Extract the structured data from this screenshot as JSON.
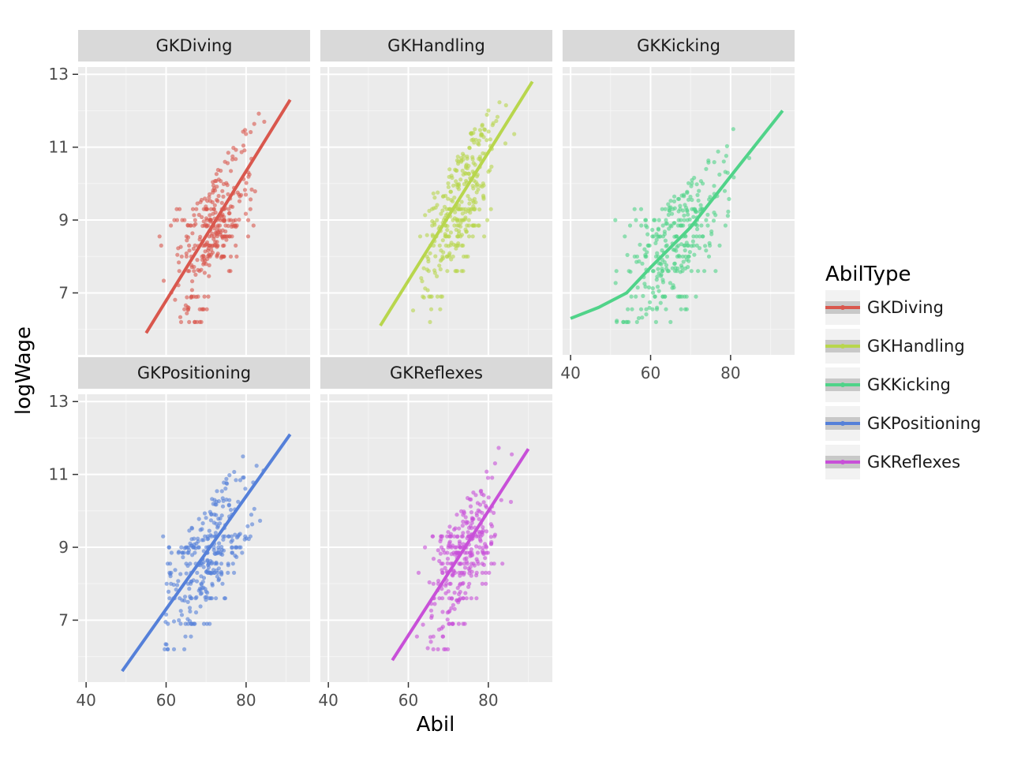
{
  "chart_data": {
    "type": "scatter",
    "layout": "facet_wrap",
    "ncol": 3,
    "xlabel": "Abil",
    "ylabel": "logWage",
    "xlim": [
      38,
      96
    ],
    "ylim": [
      5.3,
      13.2
    ],
    "xticks": [
      "40",
      "60",
      "80"
    ],
    "yticks": [
      "7",
      "9",
      "11",
      "13"
    ],
    "grid": true,
    "legend": {
      "title": "AbilType",
      "position": "right",
      "entries": [
        "GKDiving",
        "GKHandling",
        "GKKicking",
        "GKPositioning",
        "GKReflexes"
      ]
    },
    "facets": [
      {
        "label": "GKDiving",
        "color": "#d9574d",
        "x_range": [
          52,
          91
        ],
        "fit": [
          [
            55,
            5.9
          ],
          [
            91,
            12.3
          ]
        ]
      },
      {
        "label": "GKHandling",
        "color": "#b8d64d",
        "x_range": [
          53,
          92
        ],
        "fit": [
          [
            53,
            6.1
          ],
          [
            91,
            12.8
          ]
        ]
      },
      {
        "label": "GKKicking",
        "color": "#50d389",
        "x_range": [
          40,
          93
        ],
        "fit": [
          [
            40,
            6.3
          ],
          [
            47,
            6.6
          ],
          [
            54,
            7.0
          ],
          [
            60,
            7.7
          ],
          [
            70,
            8.8
          ],
          [
            80,
            10.2
          ],
          [
            93,
            12.0
          ]
        ]
      },
      {
        "label": "GKPositioning",
        "color": "#5580d9",
        "x_range": [
          49,
          92
        ],
        "fit": [
          [
            49,
            5.6
          ],
          [
            91,
            12.1
          ]
        ]
      },
      {
        "label": "GKReflexes",
        "color": "#c850d8",
        "x_range": [
          56,
          91
        ],
        "fit": [
          [
            56,
            5.9
          ],
          [
            90,
            11.7
          ]
        ]
      }
    ]
  }
}
